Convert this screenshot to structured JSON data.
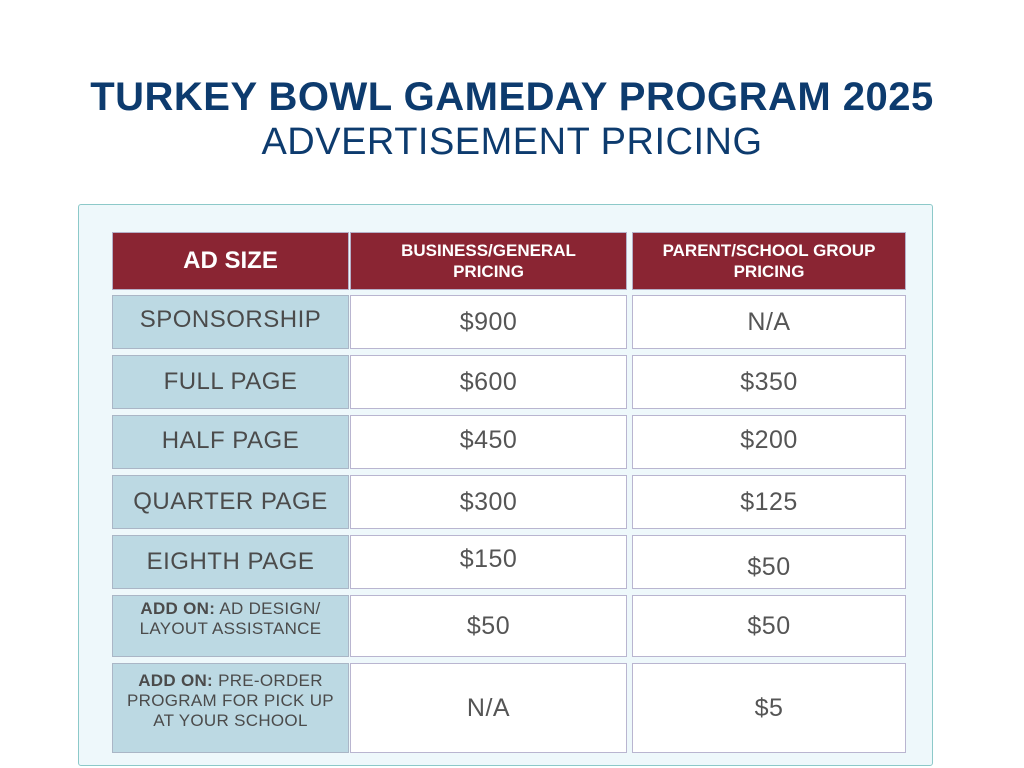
{
  "header": {
    "title": "TURKEY BOWL GAMEDAY PROGRAM 2025",
    "subtitle": "ADVERTISEMENT PRICING"
  },
  "table": {
    "headers": {
      "ad_size": "AD SIZE",
      "business": "BUSINESS/GENERAL PRICING",
      "parent": "PARENT/SCHOOL GROUP PRICING"
    },
    "rows": [
      {
        "size": "SPONSORSHIP",
        "business": "$900",
        "parent": "N/A"
      },
      {
        "size": "FULL PAGE",
        "business": "$600",
        "parent": "$350"
      },
      {
        "size": "HALF PAGE",
        "business": "$450",
        "parent": "$200"
      },
      {
        "size": "QUARTER PAGE",
        "business": "$300",
        "parent": "$125"
      },
      {
        "size": "EIGHTH PAGE",
        "business": "$150",
        "parent": "$50"
      }
    ],
    "addons": [
      {
        "prefix": "ADD ON:",
        "text": "AD DESIGN/ LAYOUT ASSISTANCE",
        "business": "$50",
        "parent": "$50"
      },
      {
        "prefix": "ADD ON:",
        "text": "PRE-ORDER PROGRAM FOR PICK UP AT YOUR SCHOOL",
        "business": "N/A",
        "parent": "$5"
      }
    ]
  }
}
